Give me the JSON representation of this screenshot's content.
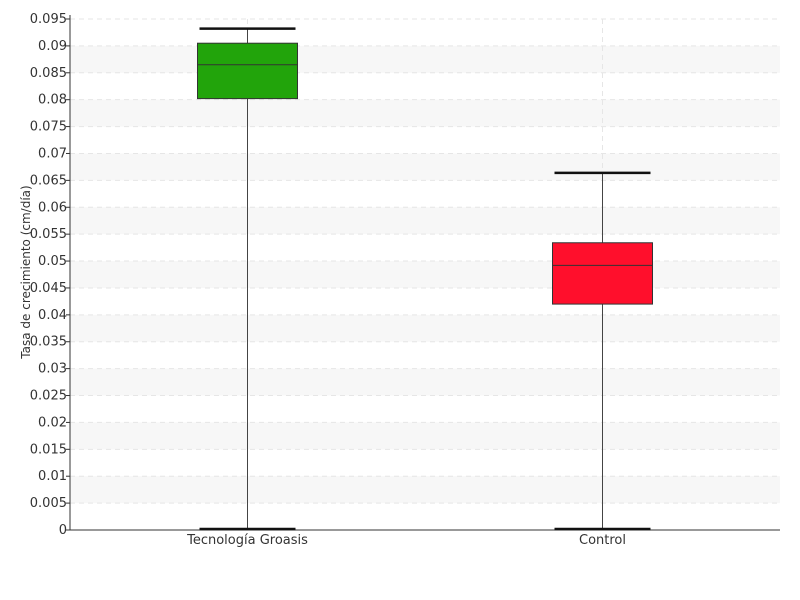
{
  "chart_data": {
    "type": "box",
    "title": "",
    "xlabel": "",
    "ylabel": "Tasa de crecimiento (cm/día)",
    "ylim": [
      0,
      0.095
    ],
    "ytick_step": 0.005,
    "yticks": [
      "0",
      "0.005",
      "0.01",
      "0.015",
      "0.02",
      "0.025",
      "0.03",
      "0.035",
      "0.04",
      "0.045",
      "0.05",
      "0.055",
      "0.06",
      "0.065",
      "0.07",
      "0.075",
      "0.08",
      "0.085",
      "0.09",
      "0.095"
    ],
    "grid": true,
    "legend": "none",
    "categories": [
      "Tecnología Groasis",
      "Control"
    ],
    "boxes": [
      {
        "category": "Tecnología Groasis",
        "min": 0,
        "q1": 0.0802,
        "median": 0.0865,
        "q3": 0.0905,
        "max": 0.0932,
        "color": "#22a40b"
      },
      {
        "category": "Control",
        "min": 0,
        "q1": 0.042,
        "median": 0.0492,
        "q3": 0.0534,
        "max": 0.0664,
        "color": "#ff0f2c"
      }
    ]
  }
}
